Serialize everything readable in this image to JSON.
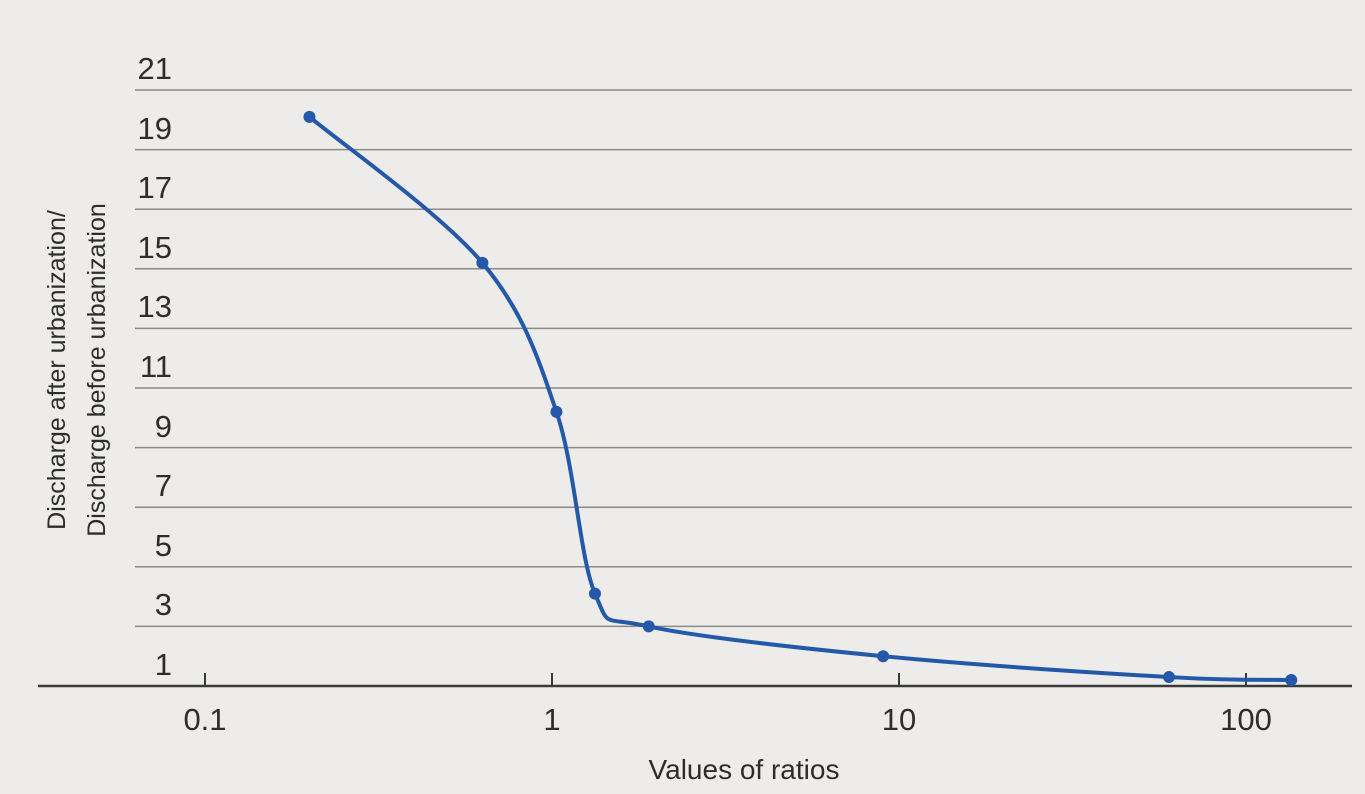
{
  "chart_data": {
    "type": "line",
    "title": "",
    "xlabel": "Values of ratios",
    "ylabel_line1": "Discharge after urbanization/",
    "ylabel_line2": "Discharge before urbanization",
    "x_scale": "log",
    "xlim": [
      0.064,
      220
    ],
    "ylim": [
      1,
      21
    ],
    "x_tick_labels": [
      "0.1",
      "1",
      "10",
      "100"
    ],
    "y_tick_labels": [
      "21",
      "19",
      "17",
      "15",
      "13",
      "11",
      "9",
      "7",
      "5",
      "3",
      "1"
    ],
    "grid": "horizontal gridlines at odd values 1 to 21, full width",
    "legend": "none",
    "series": [
      {
        "name": "discharge ratio curve",
        "x": [
          0.2,
          0.63,
          1.03,
          1.33,
          1.9,
          9,
          60,
          135
        ],
        "y": [
          20.1,
          15.2,
          10.2,
          4.1,
          3,
          2,
          1.3,
          1.2
        ]
      }
    ],
    "colors": {
      "background": "#edecea",
      "line": "#2458a8",
      "marker": "#2458a8",
      "gridline": "#8a8a8a",
      "axis": "#3a3a3a",
      "text": "#2d2d2d"
    }
  }
}
